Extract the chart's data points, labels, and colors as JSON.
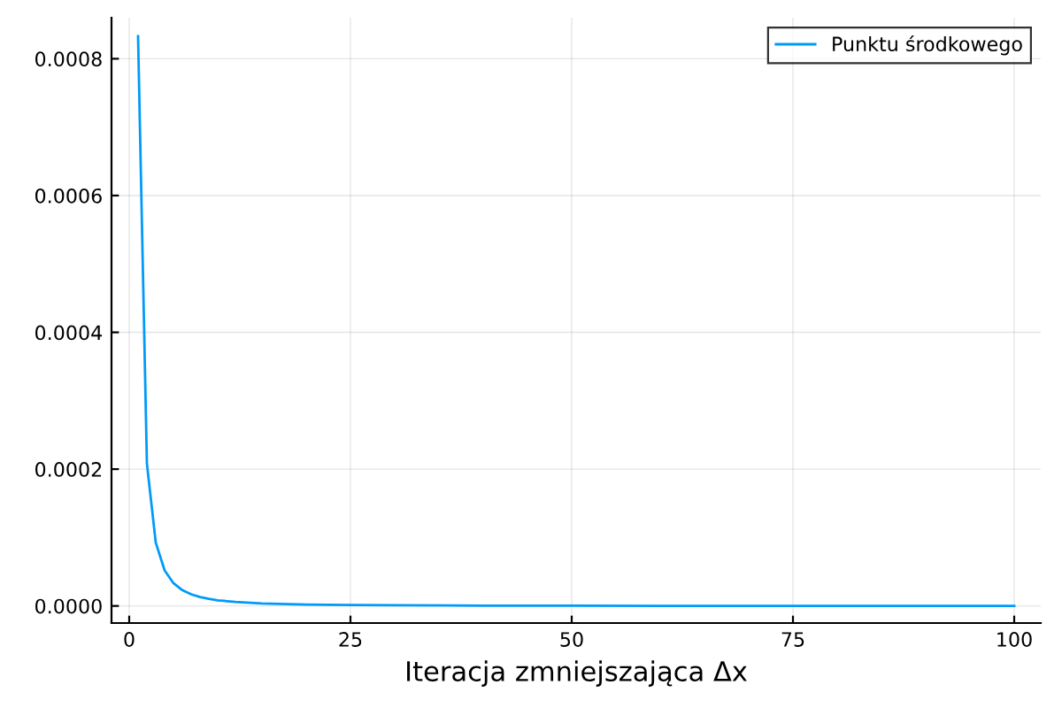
{
  "chart_data": {
    "type": "line",
    "xlabel": "Iteracja zmniejszająca Δx",
    "series": [
      {
        "name": "Punktu środkowego",
        "color": "#009af9",
        "x": [
          1,
          2,
          3,
          4,
          5,
          6,
          7,
          8,
          9,
          10,
          12,
          15,
          20,
          25,
          30,
          40,
          50,
          60,
          70,
          80,
          90,
          100
        ],
        "values": [
          0.000833,
          0.000208,
          9.26e-05,
          5.2e-05,
          3.33e-05,
          2.31e-05,
          1.7e-05,
          1.3e-05,
          1.03e-05,
          8.3e-06,
          5.8e-06,
          3.7e-06,
          2.1e-06,
          1.3e-06,
          9e-07,
          5e-07,
          3e-07,
          2e-07,
          2e-07,
          1e-07,
          1e-07,
          1e-07
        ]
      }
    ],
    "xlim": [
      -2,
      103
    ],
    "ylim": [
      -2.5e-05,
      0.00086
    ],
    "xticks": [
      0,
      25,
      50,
      75,
      100
    ],
    "yticks": [
      {
        "value": 0,
        "label": "0.0000"
      },
      {
        "value": 0.0002,
        "label": "0.0002"
      },
      {
        "value": 0.0004,
        "label": "0.0004"
      },
      {
        "value": 0.0006,
        "label": "0.0006"
      },
      {
        "value": 0.0008,
        "label": "0.0008"
      }
    ],
    "grid": true,
    "legend": "top right",
    "marker": "none",
    "line_style": "solid"
  }
}
